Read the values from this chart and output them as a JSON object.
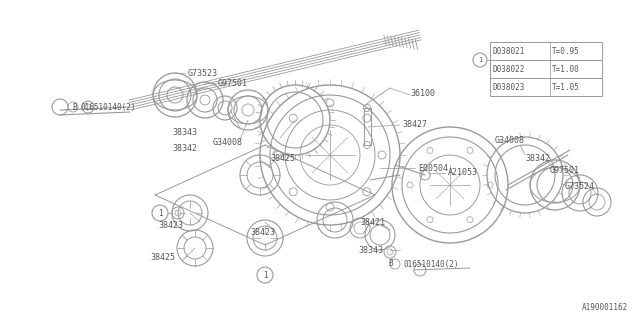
{
  "bg_color": "#ffffff",
  "lc": "#999999",
  "tc": "#555555",
  "footnote": "A190001162",
  "table_rows": [
    [
      "D038021",
      "T=0.95"
    ],
    [
      "D038022",
      "T=1.00"
    ],
    [
      "D038023",
      "T=1.05"
    ]
  ]
}
